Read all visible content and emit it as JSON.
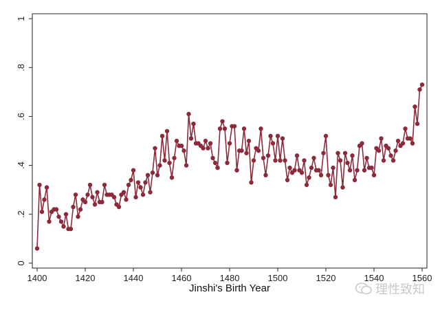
{
  "chart_data": {
    "type": "line",
    "xlabel": "Jinshi's Birth Year",
    "ylabel": "",
    "xlim": [
      1398,
      1562
    ],
    "ylim": [
      -0.02,
      1.02
    ],
    "xticks": [
      "1400",
      "1420",
      "1440",
      "1460",
      "1480",
      "1500",
      "1520",
      "1540",
      "1560"
    ],
    "yticks": [
      "0",
      ".2",
      ".4",
      ".6",
      ".8",
      "1"
    ],
    "grid": false,
    "legend": "none",
    "series": [
      {
        "color": "#8b2a3a",
        "x": [
          1400,
          1401,
          1402,
          1403,
          1404,
          1405,
          1406,
          1407,
          1408,
          1409,
          1410,
          1411,
          1412,
          1413,
          1414,
          1415,
          1416,
          1417,
          1418,
          1419,
          1420,
          1421,
          1422,
          1423,
          1424,
          1425,
          1426,
          1427,
          1428,
          1429,
          1430,
          1431,
          1432,
          1433,
          1434,
          1435,
          1436,
          1437,
          1438,
          1439,
          1440,
          1441,
          1442,
          1443,
          1444,
          1445,
          1446,
          1447,
          1448,
          1449,
          1450,
          1451,
          1452,
          1453,
          1454,
          1455,
          1456,
          1457,
          1458,
          1459,
          1460,
          1461,
          1462,
          1463,
          1464,
          1465,
          1466,
          1467,
          1468,
          1469,
          1470,
          1471,
          1472,
          1473,
          1474,
          1475,
          1476,
          1477,
          1478,
          1479,
          1480,
          1481,
          1482,
          1483,
          1484,
          1485,
          1486,
          1487,
          1488,
          1489,
          1490,
          1491,
          1492,
          1493,
          1494,
          1495,
          1496,
          1497,
          1498,
          1499,
          1500,
          1501,
          1502,
          1503,
          1504,
          1505,
          1506,
          1507,
          1508,
          1509,
          1510,
          1511,
          1512,
          1513,
          1514,
          1515,
          1516,
          1517,
          1518,
          1519,
          1520,
          1521,
          1522,
          1523,
          1524,
          1525,
          1526,
          1527,
          1528,
          1529,
          1530,
          1531,
          1532,
          1533,
          1534,
          1535,
          1536,
          1537,
          1538,
          1539,
          1540,
          1541,
          1542,
          1543,
          1544,
          1545,
          1546,
          1547,
          1548,
          1549,
          1550,
          1551,
          1552,
          1553,
          1554,
          1555,
          1556,
          1557,
          1558,
          1559,
          1560
        ],
        "y": [
          0.06,
          0.32,
          0.21,
          0.26,
          0.31,
          0.17,
          0.21,
          0.22,
          0.22,
          0.19,
          0.17,
          0.15,
          0.2,
          0.14,
          0.14,
          0.23,
          0.28,
          0.19,
          0.22,
          0.26,
          0.25,
          0.28,
          0.32,
          0.27,
          0.24,
          0.29,
          0.25,
          0.25,
          0.32,
          0.28,
          0.28,
          0.28,
          0.27,
          0.24,
          0.23,
          0.28,
          0.29,
          0.26,
          0.32,
          0.34,
          0.38,
          0.27,
          0.33,
          0.31,
          0.28,
          0.33,
          0.36,
          0.29,
          0.37,
          0.47,
          0.36,
          0.4,
          0.52,
          0.42,
          0.54,
          0.41,
          0.35,
          0.43,
          0.5,
          0.48,
          0.48,
          0.46,
          0.4,
          0.61,
          0.51,
          0.57,
          0.49,
          0.49,
          0.48,
          0.47,
          0.5,
          0.47,
          0.49,
          0.43,
          0.41,
          0.39,
          0.55,
          0.58,
          0.55,
          0.41,
          0.49,
          0.56,
          0.56,
          0.38,
          0.46,
          0.46,
          0.55,
          0.45,
          0.5,
          0.33,
          0.42,
          0.47,
          0.46,
          0.55,
          0.43,
          0.36,
          0.44,
          0.52,
          0.49,
          0.42,
          0.52,
          0.42,
          0.51,
          0.42,
          0.34,
          0.39,
          0.37,
          0.38,
          0.44,
          0.38,
          0.37,
          0.42,
          0.32,
          0.35,
          0.39,
          0.43,
          0.38,
          0.38,
          0.36,
          0.45,
          0.52,
          0.36,
          0.32,
          0.39,
          0.27,
          0.45,
          0.42,
          0.31,
          0.45,
          0.41,
          0.38,
          0.44,
          0.34,
          0.38,
          0.48,
          0.49,
          0.38,
          0.43,
          0.39,
          0.39,
          0.36,
          0.47,
          0.46,
          0.51,
          0.42,
          0.48,
          0.47,
          0.44,
          0.42,
          0.46,
          0.5,
          0.48,
          0.49,
          0.55,
          0.51,
          0.51,
          0.49,
          0.64,
          0.57,
          0.71,
          0.73
        ]
      }
    ]
  },
  "watermark": {
    "text": "理性致知",
    "icon": "wechat-icon"
  }
}
